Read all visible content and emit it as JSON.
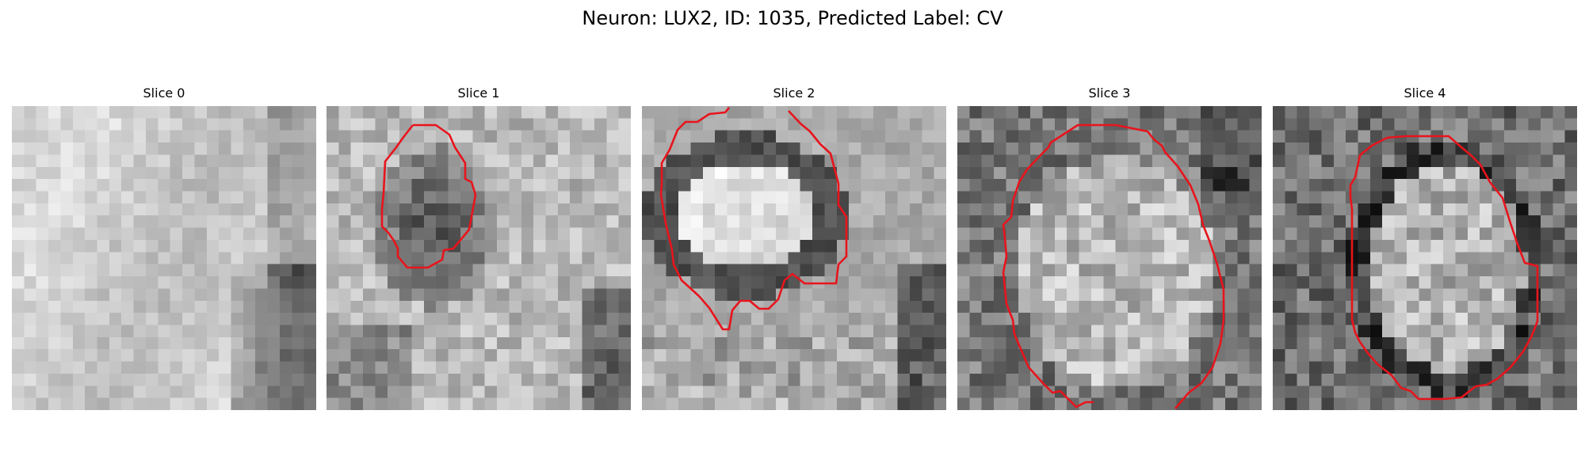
{
  "figure": {
    "title": "Neuron: LUX2, ID: 1035, Predicted Label: CV"
  },
  "colors": {
    "contour": "#e8141c",
    "background": "#ffffff"
  },
  "panels": [
    {
      "label": "Slice 0",
      "has_contour": false
    },
    {
      "label": "Slice 1",
      "has_contour": true
    },
    {
      "label": "Slice 2",
      "has_contour": true
    },
    {
      "label": "Slice 3",
      "has_contour": true
    },
    {
      "label": "Slice 4",
      "has_contour": true
    }
  ]
}
